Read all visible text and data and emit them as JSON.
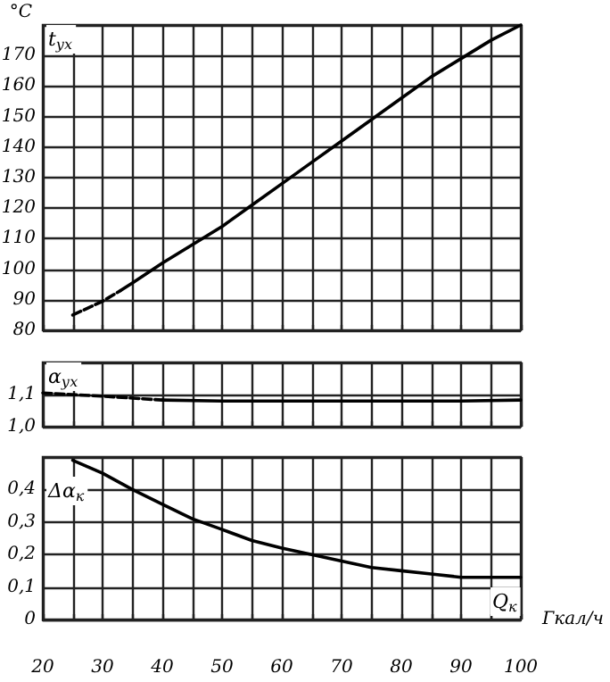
{
  "chart_data": [
    {
      "type": "line",
      "ylabel": "°C",
      "annotations": [
        "t$_{ух}$"
      ],
      "xlim": [
        20,
        100
      ],
      "xticks": [
        20,
        {
          "value": 25,
          "label": null
        },
        30,
        {
          "value": 35,
          "label": null
        },
        40,
        {
          "value": 45,
          "label": null
        },
        50,
        {
          "value": 55,
          "label": null
        },
        60,
        {
          "value": 65,
          "label": null
        },
        70,
        {
          "value": 75,
          "label": null
        },
        80,
        {
          "value": 85,
          "label": null
        },
        90,
        {
          "value": 95,
          "label": null
        },
        100
      ],
      "ylim": [
        80,
        180
      ],
      "yticks": [
        80,
        90,
        100,
        110,
        120,
        130,
        140,
        150,
        160,
        170,
        {
          "value": 180,
          "label": null
        }
      ],
      "tick_labels": "y",
      "grid": true,
      "marker": "none",
      "series": [
        {
          "color": "#000000",
          "line_style": "dashed",
          "x": [
            25,
            30,
            33
          ],
          "values": [
            85,
            89.5,
            93
          ]
        },
        {
          "color": "#000000",
          "line_style": "solid",
          "x": [
            33,
            35,
            40,
            45,
            50,
            55,
            60,
            65,
            70,
            75,
            80,
            85,
            90,
            95,
            100
          ],
          "values": [
            93,
            95.5,
            102,
            108,
            114,
            121,
            128,
            135,
            142,
            149,
            156,
            163,
            169,
            175,
            180
          ]
        }
      ]
    },
    {
      "type": "line",
      "annotations": [
        "α$_{ух}$"
      ],
      "xlim": [
        20,
        100
      ],
      "xticks": [
        20,
        {
          "value": 25,
          "label": null
        },
        30,
        {
          "value": 35,
          "label": null
        },
        40,
        {
          "value": 45,
          "label": null
        },
        50,
        {
          "value": 55,
          "label": null
        },
        60,
        {
          "value": 65,
          "label": null
        },
        70,
        {
          "value": 75,
          "label": null
        },
        80,
        {
          "value": 85,
          "label": null
        },
        90,
        {
          "value": 95,
          "label": null
        },
        100
      ],
      "ylim": [
        1.0,
        1.2
      ],
      "yticks": [
        {
          "value": 1.0,
          "label": "1,0"
        },
        {
          "value": 1.1,
          "label": "1,1"
        },
        {
          "value": 1.2,
          "label": null
        }
      ],
      "tick_labels": "y",
      "grid": true,
      "marker": "none",
      "series": [
        {
          "color": "#000000",
          "line_style": "dashed",
          "x": [
            20,
            30,
            40
          ],
          "values": [
            1.105,
            1.095,
            1.083
          ]
        },
        {
          "color": "#000000",
          "line_style": "solid",
          "x": [
            40,
            50,
            60,
            70,
            80,
            90,
            100
          ],
          "values": [
            1.083,
            1.08,
            1.08,
            1.08,
            1.08,
            1.08,
            1.083
          ]
        }
      ]
    },
    {
      "type": "line",
      "xlabel": "Гкал/ч",
      "annotations": [
        "Δα$_{к}$",
        "Q$_{к}$"
      ],
      "xlim": [
        20,
        100
      ],
      "xticks": [
        20,
        {
          "value": 25,
          "label": null
        },
        30,
        {
          "value": 35,
          "label": null
        },
        40,
        {
          "value": 45,
          "label": null
        },
        50,
        {
          "value": 55,
          "label": null
        },
        60,
        {
          "value": 65,
          "label": null
        },
        70,
        {
          "value": 75,
          "label": null
        },
        80,
        {
          "value": 85,
          "label": null
        },
        90,
        {
          "value": 95,
          "label": null
        },
        100
      ],
      "ylim": [
        0,
        0.5
      ],
      "yticks": [
        0,
        {
          "value": 0.1,
          "label": "0,1"
        },
        {
          "value": 0.2,
          "label": "0,2"
        },
        {
          "value": 0.3,
          "label": "0,3"
        },
        {
          "value": 0.4,
          "label": "0,4"
        },
        {
          "value": 0.5,
          "label": null
        }
      ],
      "grid": true,
      "marker": "none",
      "series": [
        {
          "color": "#000000",
          "line_style": "solid",
          "x": [
            25,
            30,
            35,
            40,
            45,
            50,
            55,
            60,
            65,
            70,
            75,
            80,
            85,
            90,
            95,
            100
          ],
          "values": [
            0.49,
            0.45,
            0.4,
            0.355,
            0.31,
            0.277,
            0.243,
            0.22,
            0.2,
            0.18,
            0.16,
            0.15,
            0.14,
            0.13,
            0.13,
            0.13
          ]
        }
      ]
    }
  ]
}
